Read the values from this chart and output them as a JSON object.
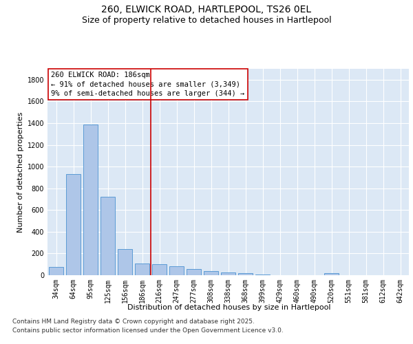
{
  "title_line1": "260, ELWICK ROAD, HARTLEPOOL, TS26 0EL",
  "title_line2": "Size of property relative to detached houses in Hartlepool",
  "xlabel": "Distribution of detached houses by size in Hartlepool",
  "ylabel": "Number of detached properties",
  "categories": [
    "34sqm",
    "64sqm",
    "95sqm",
    "125sqm",
    "156sqm",
    "186sqm",
    "216sqm",
    "247sqm",
    "277sqm",
    "308sqm",
    "338sqm",
    "368sqm",
    "399sqm",
    "429sqm",
    "460sqm",
    "490sqm",
    "520sqm",
    "551sqm",
    "581sqm",
    "612sqm",
    "642sqm"
  ],
  "values": [
    75,
    930,
    1390,
    720,
    240,
    110,
    100,
    80,
    55,
    40,
    25,
    20,
    5,
    0,
    0,
    0,
    20,
    0,
    0,
    0,
    0
  ],
  "bar_color": "#aec6e8",
  "bar_edge_color": "#5b9bd5",
  "highlight_index": 5,
  "highlight_line_color": "#cc0000",
  "highlight_box_color": "#cc0000",
  "annotation_text": "260 ELWICK ROAD: 186sqm\n← 91% of detached houses are smaller (3,349)\n9% of semi-detached houses are larger (344) →",
  "ylim": [
    0,
    1900
  ],
  "yticks": [
    0,
    200,
    400,
    600,
    800,
    1000,
    1200,
    1400,
    1600,
    1800
  ],
  "background_color": "#dce8f5",
  "grid_color": "#ffffff",
  "footer_line1": "Contains HM Land Registry data © Crown copyright and database right 2025.",
  "footer_line2": "Contains public sector information licensed under the Open Government Licence v3.0.",
  "title_fontsize": 10,
  "subtitle_fontsize": 9,
  "axis_label_fontsize": 8,
  "tick_fontsize": 7,
  "annotation_fontsize": 7.5,
  "footer_fontsize": 6.5
}
